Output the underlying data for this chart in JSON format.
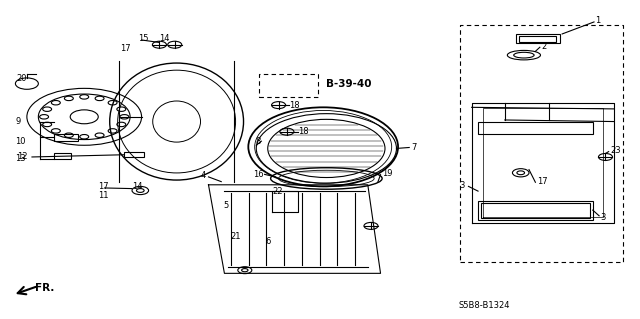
{
  "bg_color": "#ffffff",
  "diagram_code": "S5B8-B1324",
  "ref_label": "B-39-40",
  "fr_label": "FR."
}
